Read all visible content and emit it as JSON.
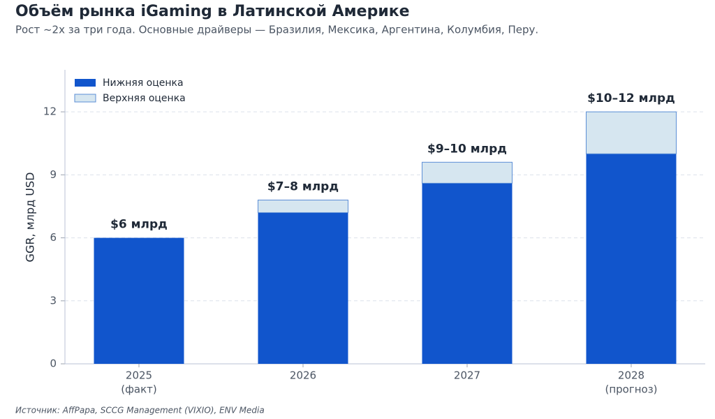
{
  "chart_data": {
    "type": "stacked-bar",
    "title": "Объём рынка iGaming в Латинской Америке",
    "subtitle": "Рост ~2x за три года. Основные драйверы — Бразилия, Мексика, Аргентина, Колумбия, Перу.",
    "ylabel": "GGR, млрд USD",
    "source": "Источник: AffPapa, SCCG Management (VIXIO), ENV Media",
    "categories": [
      "2025",
      "2026",
      "2027",
      "2028"
    ],
    "category_notes": [
      "(факт)",
      null,
      null,
      "(прогноз)"
    ],
    "annotations": [
      "$6 млрд",
      "$7–8 млрд",
      "$9–10 млрд",
      "$10–12 млрд"
    ],
    "series": [
      {
        "name": "Нижняя оценка",
        "color": "#1155cc",
        "values": [
          6,
          7.2,
          8.6,
          10
        ]
      },
      {
        "name": "Верхняя оценка",
        "color": "#d6e6f0",
        "edge_color": "#5b8ed6",
        "values": [
          null,
          0.6,
          1.0,
          2.0
        ]
      }
    ],
    "ylim": [
      0,
      14
    ],
    "yticks": [
      0,
      3,
      6,
      9,
      12
    ],
    "grid": true,
    "legend": "upper-left"
  }
}
